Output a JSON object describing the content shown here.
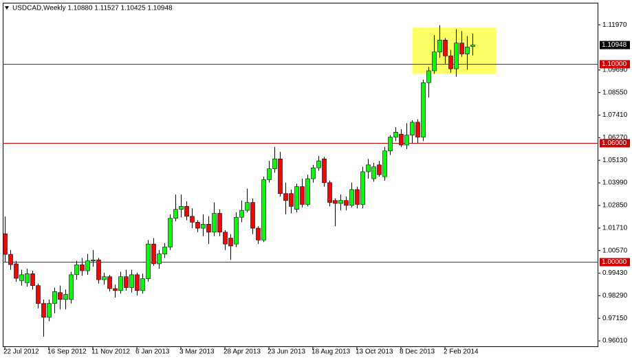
{
  "chart_data": {
    "type": "candlestick",
    "title": "USDCAD,Weekly  1.10880 1.11527 1.10425 1.10948",
    "categories": [
      "22 Jul 2012",
      null,
      null,
      null,
      null,
      null,
      null,
      null,
      "16 Sep 2012",
      null,
      null,
      null,
      null,
      null,
      null,
      null,
      "11 Nov 2012",
      null,
      null,
      null,
      null,
      null,
      null,
      null,
      "6 Jan 2013",
      null,
      null,
      null,
      null,
      null,
      null,
      null,
      "3 Mar 2013",
      null,
      null,
      null,
      null,
      null,
      null,
      null,
      "28 Apr 2013",
      null,
      null,
      null,
      null,
      null,
      null,
      null,
      "23 Jun 2013",
      null,
      null,
      null,
      null,
      null,
      null,
      null,
      "18 Aug 2013",
      null,
      null,
      null,
      null,
      null,
      null,
      null,
      "13 Oct 2013",
      null,
      null,
      null,
      null,
      null,
      null,
      null,
      "8 Dec 2013",
      null,
      null,
      null,
      null,
      null,
      null,
      null,
      "2 Feb 2014",
      null,
      null,
      null,
      null,
      null
    ],
    "open": [
      1.0142,
      1.0038,
      0.999,
      0.9905,
      0.9895,
      0.994,
      0.988,
      0.979,
      0.972,
      0.979,
      0.9845,
      0.981,
      0.981,
      0.9935,
      0.9985,
      0.9955,
      1.0005,
      1.001,
      0.991,
      0.9925,
      0.9865,
      0.9855,
      0.9925,
      0.987,
      0.9935,
      0.9855,
      0.9915,
      1.009,
      0.999,
      1.004,
      1.0075,
      1.022,
      1.0265,
      1.028,
      1.023,
      1.02,
      1.017,
      1.019,
      1.015,
      1.0245,
      1.015,
      1.012,
      1.009,
      1.0225,
      1.026,
      1.03,
      1.017,
      1.011,
      1.0415,
      1.047,
      1.052,
      1.0345,
      1.0345,
      1.0265,
      1.038,
      1.029,
      1.042,
      1.0475,
      1.052,
      1.04,
      1.031,
      1.0295,
      1.031,
      1.0285,
      1.0365,
      1.029,
      1.0455,
      1.042,
      1.049,
      1.043,
      1.056,
      1.063,
      1.0645,
      1.059,
      1.064,
      1.0705,
      1.063,
      1.0905,
      1.0965,
      1.106,
      1.112,
      1.104,
      1.0975,
      1.1105,
      1.105,
      1.1088
    ],
    "high": [
      1.0229,
      1.006,
      1.0005,
      0.996,
      0.9965,
      0.9955,
      0.989,
      0.981,
      0.981,
      0.987,
      0.988,
      0.986,
      0.995,
      1.0005,
      1.002,
      1.004,
      1.006,
      1.002,
      0.9945,
      0.9935,
      0.9885,
      0.995,
      0.996,
      0.996,
      0.9945,
      0.994,
      1.011,
      1.012,
      1.006,
      1.0095,
      1.024,
      1.034,
      1.034,
      1.0305,
      1.027,
      1.021,
      1.024,
      1.023,
      1.03,
      1.0265,
      1.016,
      1.014,
      1.025,
      1.031,
      1.037,
      1.032,
      1.018,
      1.043,
      1.051,
      1.058,
      1.0555,
      1.04,
      1.0365,
      1.0395,
      1.042,
      1.044,
      1.049,
      1.0535,
      1.053,
      1.041,
      1.032,
      1.034,
      1.033,
      1.04,
      1.038,
      1.048,
      1.052,
      1.05,
      1.051,
      1.058,
      1.064,
      1.068,
      1.067,
      1.07,
      1.0715,
      1.072,
      1.092,
      1.0985,
      1.1145,
      1.1195,
      1.113,
      1.107,
      1.1175,
      1.1165,
      1.114,
      1.11527
    ],
    "low": [
      1.0,
      0.996,
      0.9899,
      0.988,
      0.9875,
      0.986,
      0.9765,
      0.9622,
      0.97,
      0.974,
      0.976,
      0.976,
      0.979,
      0.991,
      0.993,
      0.9935,
      0.9975,
      0.989,
      0.9885,
      0.985,
      0.982,
      0.984,
      0.9855,
      0.9845,
      0.983,
      0.984,
      0.99,
      0.998,
      0.9965,
      1.002,
      1.006,
      1.0205,
      1.0225,
      1.021,
      1.017,
      1.015,
      1.013,
      1.009,
      1.013,
      1.013,
      1.006,
      1.001,
      1.0075,
      1.02,
      1.025,
      1.014,
      1.009,
      1.01,
      1.04,
      1.045,
      1.033,
      1.024,
      1.0245,
      1.025,
      1.0275,
      1.028,
      1.04,
      1.046,
      1.038,
      1.028,
      1.018,
      1.026,
      1.026,
      1.0275,
      1.027,
      1.027,
      1.042,
      1.0405,
      1.043,
      1.041,
      1.054,
      1.061,
      1.058,
      1.057,
      1.06,
      1.06,
      1.061,
      1.083,
      1.095,
      1.103,
      1.1,
      1.0955,
      1.0935,
      1.1035,
      1.097,
      1.10425
    ],
    "close": [
      1.0038,
      0.9986,
      0.9917,
      0.9935,
      0.994,
      0.988,
      0.979,
      0.972,
      0.979,
      0.985,
      0.981,
      0.9835,
      0.9935,
      0.9985,
      0.9955,
      1.0005,
      1.001,
      0.991,
      0.9925,
      0.9865,
      0.9855,
      0.9925,
      0.987,
      0.9935,
      0.9855,
      0.9915,
      1.009,
      0.999,
      1.004,
      1.0075,
      1.022,
      1.0265,
      1.028,
      1.023,
      1.02,
      1.017,
      1.019,
      1.015,
      1.0245,
      1.015,
      1.009,
      1.008,
      1.0225,
      1.026,
      1.03,
      1.017,
      1.011,
      1.0415,
      1.047,
      1.052,
      1.0345,
      1.031,
      1.028,
      1.038,
      1.029,
      1.042,
      1.0475,
      1.051,
      1.04,
      1.03,
      1.0295,
      1.031,
      1.0285,
      1.0365,
      1.029,
      1.0455,
      1.049,
      1.048,
      1.044,
      1.056,
      1.063,
      1.0655,
      1.059,
      1.064,
      1.0705,
      1.063,
      1.0905,
      1.0965,
      1.106,
      1.112,
      1.104,
      1.0975,
      1.1105,
      1.105,
      1.1085,
      1.10948
    ],
    "up_color": "#00ff00",
    "down_color": "#ff0000",
    "ylim": [
      0.957,
      1.1305
    ],
    "yticks": [
      {
        "value": 1.1197,
        "label": "1.11970"
      },
      {
        "value": 1.0969,
        "label": "1.09690"
      },
      {
        "value": 1.0855,
        "label": "1.08550"
      },
      {
        "value": 1.0741,
        "label": "1.07410"
      },
      {
        "value": 1.0627,
        "label": "1.06270"
      },
      {
        "value": 1.0513,
        "label": "1.05130"
      },
      {
        "value": 1.0399,
        "label": "1.03990"
      },
      {
        "value": 1.0285,
        "label": "1.02850"
      },
      {
        "value": 1.0171,
        "label": "1.01710"
      },
      {
        "value": 1.0057,
        "label": "1.00570"
      },
      {
        "value": 0.9943,
        "label": "0.99430"
      },
      {
        "value": 0.9829,
        "label": "0.98290"
      },
      {
        "value": 0.9715,
        "label": "0.97150"
      },
      {
        "value": 0.9601,
        "label": "0.96010"
      }
    ],
    "levels": [
      {
        "value": 1.1,
        "label": "1.10000"
      },
      {
        "value": 1.06,
        "label": "1.06000"
      },
      {
        "value": 1.0,
        "label": "1.00000"
      }
    ],
    "level_color": "#cc0000",
    "current_price": {
      "value": 1.10948,
      "label": "1.10948"
    },
    "highlight": {
      "high": 1.1183,
      "low": 1.0951,
      "color": "#ffff66"
    }
  }
}
